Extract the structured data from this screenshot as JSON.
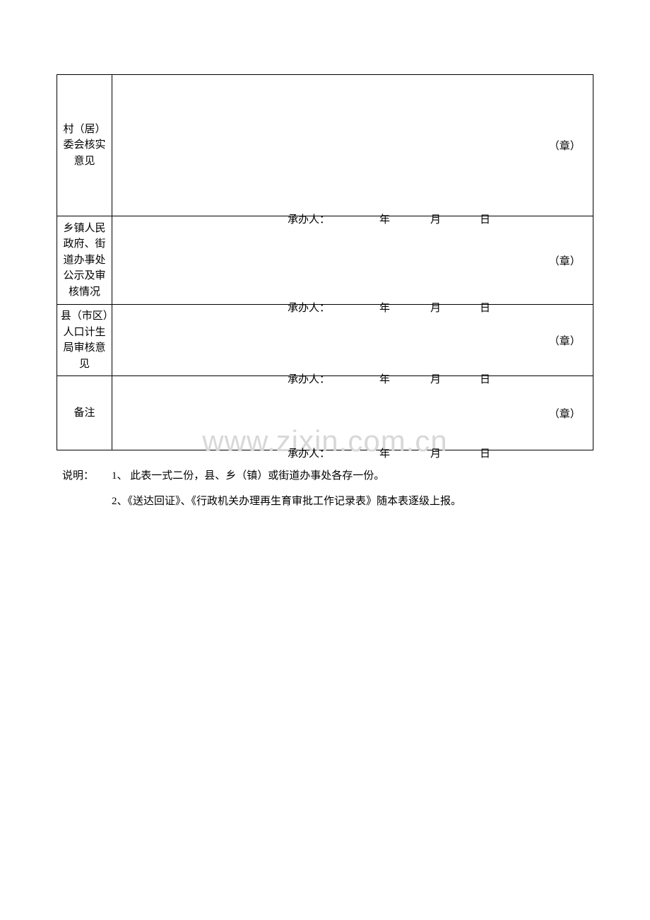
{
  "table": {
    "rows": [
      {
        "label": "村（居）委会核实意见",
        "handler_label": "承办人：",
        "year_label": "年",
        "month_label": "月",
        "day_label": "日",
        "stamp_label": "（章）",
        "height_class": "row-1"
      },
      {
        "label": "乡镇人民政府、街道办事处公示及审核情况",
        "handler_label": "承办人：",
        "year_label": "年",
        "month_label": "月",
        "day_label": "日",
        "stamp_label": "（章）",
        "height_class": "row-2"
      },
      {
        "label": "县（市区）人口计生局审核意见",
        "handler_label": "承办人：",
        "year_label": "年",
        "month_label": "月",
        "day_label": "日",
        "stamp_label": "（章）",
        "height_class": "row-3"
      },
      {
        "label": "备注",
        "handler_label": "承办人：",
        "year_label": "年",
        "month_label": "月",
        "day_label": "日",
        "stamp_label": "（章）",
        "height_class": "row-4"
      }
    ]
  },
  "notes": {
    "label": "说明：",
    "line1": "1、 此表一式二份，县、乡（镇）或街道办事处各存一份。",
    "line2": "2、《送达回证》、《行政机关办理再生育审批工作记录表》随本表逐级上报。"
  },
  "watermark": "www.zixin.com.cn",
  "colors": {
    "text": "#000000",
    "background": "#ffffff",
    "border": "#000000",
    "watermark": "#d8d8d8"
  }
}
